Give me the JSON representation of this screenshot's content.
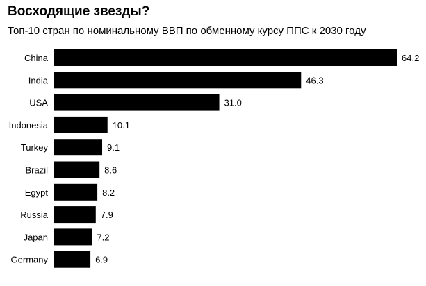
{
  "chart": {
    "title": "Восходящие звезды?",
    "subtitle": "Топ-10 стран по номинальному ВВП по обменному курсу ППС к 2030 году"
  },
  "chart_data": {
    "type": "bar",
    "orientation": "horizontal",
    "title": "Восходящие звезды?",
    "subtitle": "Топ-10 стран по номинальному ВВП по обменному курсу ППС к 2030 году",
    "categories": [
      "China",
      "India",
      "USA",
      "Indonesia",
      "Turkey",
      "Brazil",
      "Egypt",
      "Russia",
      "Japan",
      "Germany"
    ],
    "values": [
      64.2,
      46.3,
      31.0,
      10.1,
      9.1,
      8.6,
      8.2,
      7.9,
      7.2,
      6.9
    ],
    "value_labels": [
      "64.2",
      "46.3",
      "31.0",
      "10.1",
      "9.1",
      "8.6",
      "8.2",
      "7.9",
      "7.2",
      "6.9"
    ],
    "bar_color": "#000000",
    "grid": false,
    "legend": "none"
  }
}
